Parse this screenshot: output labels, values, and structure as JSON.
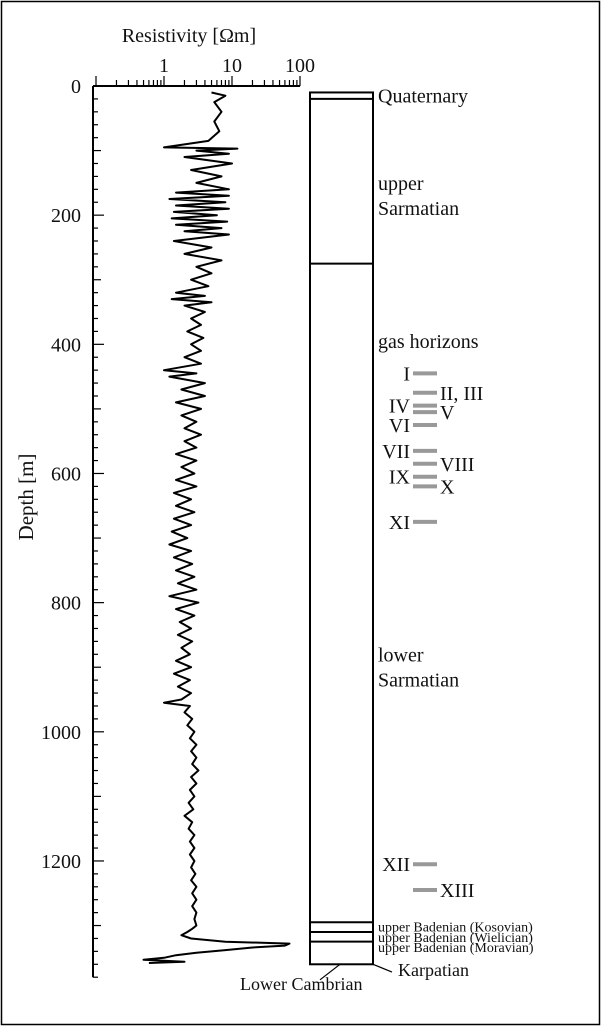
{
  "chart_data": {
    "type": "line",
    "x_label": "Resistivity [Ωm]",
    "y_label": "Depth [m]",
    "x_scale": "log",
    "x_ticks": [
      {
        "value": 0.1,
        "label": ""
      },
      {
        "value": 1,
        "label": "1"
      },
      {
        "value": 10,
        "label": "10"
      },
      {
        "value": 100,
        "label": "100"
      }
    ],
    "y_ticks": [
      0,
      200,
      400,
      600,
      800,
      1000,
      1200
    ],
    "y_range": [
      0,
      1380
    ],
    "series": [
      {
        "name": "",
        "color": "#000000",
        "points": [
          [
            10,
            5.0
          ],
          [
            15,
            8.0
          ],
          [
            25,
            5.5
          ],
          [
            40,
            7.0
          ],
          [
            55,
            5.5
          ],
          [
            70,
            6.5
          ],
          [
            85,
            4.5
          ],
          [
            95,
            1.0
          ],
          [
            97,
            12.0
          ],
          [
            100,
            3.0
          ],
          [
            105,
            9.0
          ],
          [
            110,
            2.0
          ],
          [
            120,
            10.0
          ],
          [
            130,
            2.5
          ],
          [
            140,
            7.0
          ],
          [
            150,
            3.0
          ],
          [
            160,
            9.0
          ],
          [
            165,
            1.5
          ],
          [
            170,
            9.0
          ],
          [
            175,
            1.2
          ],
          [
            180,
            8.0
          ],
          [
            185,
            1.5
          ],
          [
            190,
            9.0
          ],
          [
            195,
            1.4
          ],
          [
            200,
            6.0
          ],
          [
            205,
            1.3
          ],
          [
            210,
            8.5
          ],
          [
            215,
            1.5
          ],
          [
            220,
            7.0
          ],
          [
            225,
            2.0
          ],
          [
            230,
            9.0
          ],
          [
            240,
            1.4
          ],
          [
            250,
            5.0
          ],
          [
            260,
            2.0
          ],
          [
            270,
            7.0
          ],
          [
            280,
            3.0
          ],
          [
            290,
            5.0
          ],
          [
            300,
            2.5
          ],
          [
            310,
            4.5
          ],
          [
            320,
            1.5
          ],
          [
            325,
            4.0
          ],
          [
            330,
            1.3
          ],
          [
            335,
            5.0
          ],
          [
            340,
            2.0
          ],
          [
            350,
            4.0
          ],
          [
            360,
            2.5
          ],
          [
            370,
            3.5
          ],
          [
            380,
            2.2
          ],
          [
            390,
            3.8
          ],
          [
            400,
            2.5
          ],
          [
            410,
            3.5
          ],
          [
            420,
            2.0
          ],
          [
            430,
            3.5
          ],
          [
            440,
            1.0
          ],
          [
            445,
            3.0
          ],
          [
            450,
            1.2
          ],
          [
            460,
            4.0
          ],
          [
            470,
            1.8
          ],
          [
            480,
            4.0
          ],
          [
            490,
            1.5
          ],
          [
            500,
            3.5
          ],
          [
            510,
            1.8
          ],
          [
            520,
            3.0
          ],
          [
            530,
            2.0
          ],
          [
            540,
            3.5
          ],
          [
            550,
            2.0
          ],
          [
            560,
            3.0
          ],
          [
            570,
            1.5
          ],
          [
            580,
            3.0
          ],
          [
            590,
            1.8
          ],
          [
            600,
            2.8
          ],
          [
            610,
            1.5
          ],
          [
            620,
            3.0
          ],
          [
            630,
            1.4
          ],
          [
            640,
            2.5
          ],
          [
            650,
            1.5
          ],
          [
            660,
            2.8
          ],
          [
            670,
            1.4
          ],
          [
            680,
            2.5
          ],
          [
            690,
            1.3
          ],
          [
            700,
            2.2
          ],
          [
            710,
            1.2
          ],
          [
            720,
            2.5
          ],
          [
            730,
            1.4
          ],
          [
            740,
            2.6
          ],
          [
            750,
            1.5
          ],
          [
            760,
            2.8
          ],
          [
            770,
            1.6
          ],
          [
            780,
            3.0
          ],
          [
            790,
            1.2
          ],
          [
            800,
            3.2
          ],
          [
            810,
            1.5
          ],
          [
            820,
            2.8
          ],
          [
            830,
            1.7
          ],
          [
            840,
            2.5
          ],
          [
            850,
            1.6
          ],
          [
            860,
            2.6
          ],
          [
            870,
            1.8
          ],
          [
            880,
            2.4
          ],
          [
            890,
            1.5
          ],
          [
            900,
            2.5
          ],
          [
            910,
            1.4
          ],
          [
            920,
            2.4
          ],
          [
            930,
            1.6
          ],
          [
            940,
            2.5
          ],
          [
            950,
            1.8
          ],
          [
            955,
            1.0
          ],
          [
            960,
            2.4
          ],
          [
            970,
            2.0
          ],
          [
            980,
            2.6
          ],
          [
            990,
            2.2
          ],
          [
            1000,
            2.8
          ],
          [
            1010,
            2.4
          ],
          [
            1020,
            3.0
          ],
          [
            1030,
            2.5
          ],
          [
            1040,
            3.0
          ],
          [
            1050,
            2.6
          ],
          [
            1060,
            3.2
          ],
          [
            1070,
            2.5
          ],
          [
            1080,
            3.0
          ],
          [
            1090,
            2.4
          ],
          [
            1100,
            2.8
          ],
          [
            1110,
            2.3
          ],
          [
            1120,
            2.7
          ],
          [
            1130,
            2.0
          ],
          [
            1140,
            2.6
          ],
          [
            1150,
            2.3
          ],
          [
            1160,
            2.8
          ],
          [
            1170,
            2.4
          ],
          [
            1180,
            2.8
          ],
          [
            1190,
            2.4
          ],
          [
            1200,
            2.8
          ],
          [
            1210,
            2.5
          ],
          [
            1220,
            2.9
          ],
          [
            1230,
            2.5
          ],
          [
            1240,
            3.0
          ],
          [
            1250,
            2.6
          ],
          [
            1260,
            3.0
          ],
          [
            1270,
            2.6
          ],
          [
            1280,
            3.0
          ],
          [
            1290,
            2.8
          ],
          [
            1300,
            3.0
          ],
          [
            1305,
            2.6
          ],
          [
            1310,
            2.2
          ],
          [
            1315,
            1.8
          ],
          [
            1320,
            2.5
          ],
          [
            1325,
            8.0
          ],
          [
            1328,
            70.0
          ],
          [
            1331,
            60.0
          ],
          [
            1334,
            20.0
          ],
          [
            1338,
            8.0
          ],
          [
            1342,
            3.0
          ],
          [
            1346,
            1.5
          ],
          [
            1350,
            1.0
          ],
          [
            1353,
            0.5
          ],
          [
            1356,
            2.0
          ],
          [
            1358,
            0.6
          ]
        ]
      }
    ],
    "column": {
      "boundaries": [
        10,
        20,
        275,
        1295,
        1310,
        1325,
        1360
      ],
      "labels": [
        {
          "text": "Quaternary",
          "depth": 15
        },
        {
          "text": "upper\nSarmatian",
          "depth": 150
        },
        {
          "text": "gas horizons",
          "depth": 395
        },
        {
          "text": "lower\nSarmatian",
          "depth": 880
        },
        {
          "text": "upper Badenian (Kosovian)",
          "depth": 1302
        },
        {
          "text": "upper Badenian (Wielician)",
          "depth": 1318
        },
        {
          "text": "upper Badenian (Moravian)",
          "depth": 1333
        },
        {
          "text": "Karpatian",
          "depth": 1368
        },
        {
          "text": "Lower Cambrian",
          "depth": 1390
        }
      ],
      "horizons": [
        {
          "label": "I",
          "depth": 445,
          "side": "left"
        },
        {
          "label": "II, III",
          "depth": 475,
          "side": "right"
        },
        {
          "label": "IV",
          "depth": 495,
          "side": "left"
        },
        {
          "label": "V",
          "depth": 505,
          "side": "right"
        },
        {
          "label": "VI",
          "depth": 525,
          "side": "left"
        },
        {
          "label": "VII",
          "depth": 565,
          "side": "left"
        },
        {
          "label": "VIII",
          "depth": 585,
          "side": "right"
        },
        {
          "label": "IX",
          "depth": 605,
          "side": "left"
        },
        {
          "label": "X",
          "depth": 620,
          "side": "right"
        },
        {
          "label": "XI",
          "depth": 675,
          "side": "left"
        },
        {
          "label": "XII",
          "depth": 1205,
          "side": "left"
        },
        {
          "label": "XIII",
          "depth": 1245,
          "side": "right"
        }
      ]
    }
  }
}
